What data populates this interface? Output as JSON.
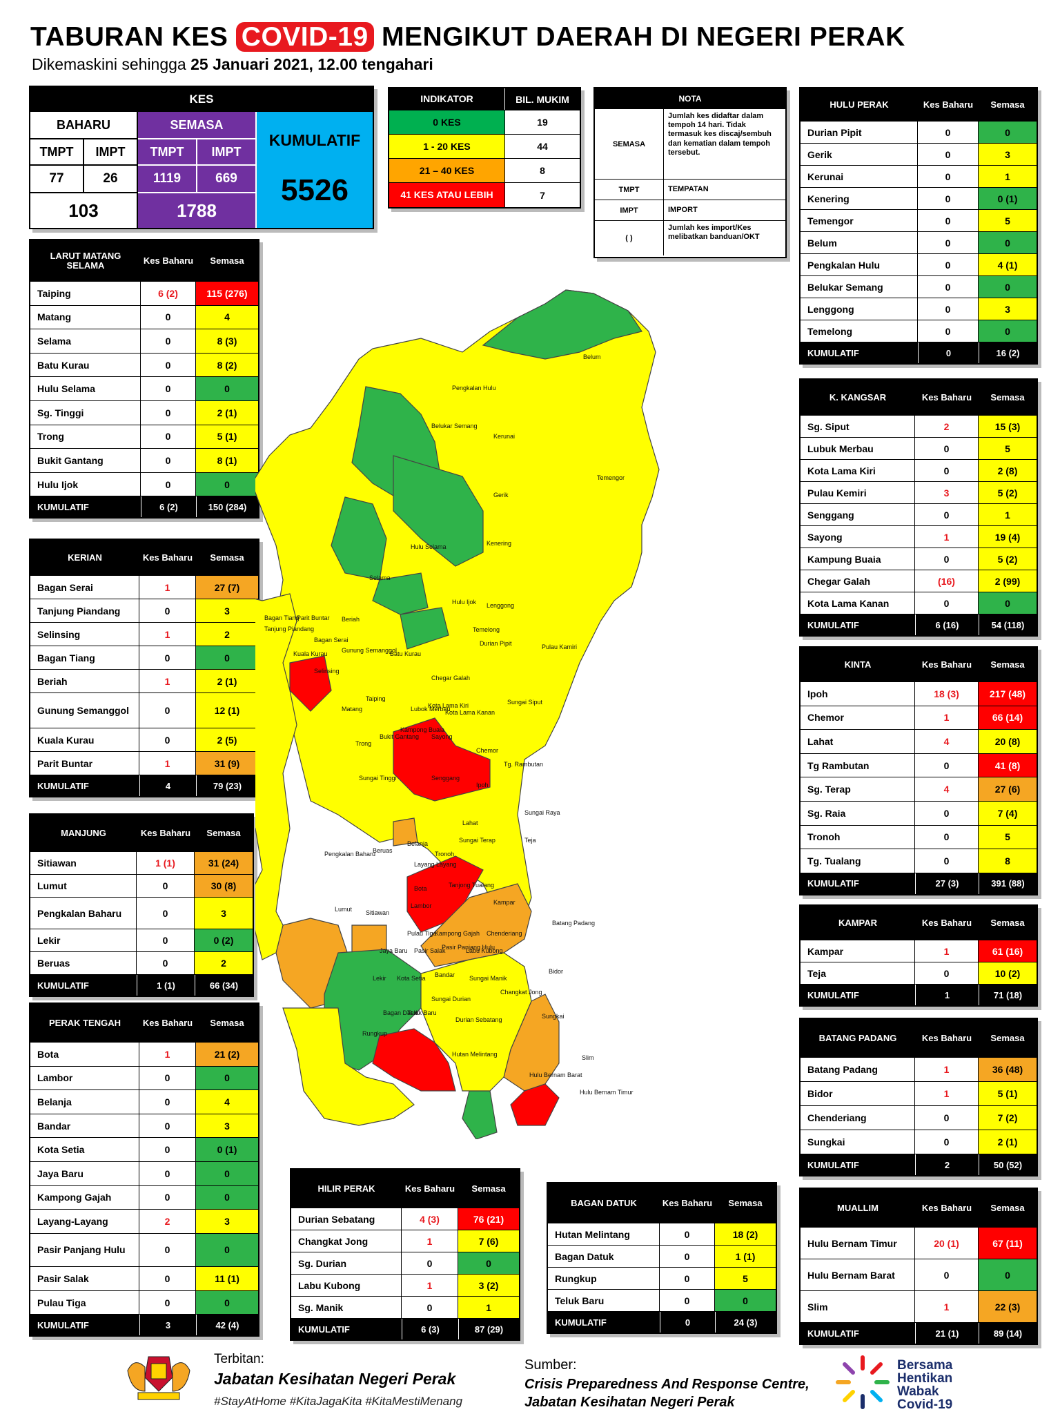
{
  "header": {
    "title_pre": "TABURAN KES",
    "title_hl": "COVID-19",
    "title_post": "MENGIKUT DAERAH DI NEGERI PERAK",
    "subtitle_pre": "Dikemaskini sehingga",
    "subtitle_date": "25 Januari 2021, 12.00 tengahari"
  },
  "kes": {
    "title": "KES",
    "baharu": "BAHARU",
    "semasa": "SEMASA",
    "kumulatif": "KUMULATIF",
    "tmpt": "TMPT",
    "impt": "IMPT",
    "baharu_tmpt": "77",
    "baharu_impt": "26",
    "semasa_tmpt": "1119",
    "semasa_impt": "669",
    "baharu_total": "103",
    "semasa_total": "1788",
    "kumulatif_total": "5526",
    "colors": {
      "semasa": "#7030a0",
      "kumulatif": "#00b0f0"
    }
  },
  "indikator": {
    "h1": "INDIKATOR",
    "h2": "BIL. MUKIM",
    "rows": [
      {
        "label": "0 KES",
        "count": "19",
        "color": "#00b050"
      },
      {
        "label": "1 - 20 KES",
        "count": "44",
        "color": "#ffff00"
      },
      {
        "label": "21 – 40 KES",
        "count": "8",
        "color": "#ffa500"
      },
      {
        "label": "41 KES ATAU LEBIH",
        "count": "7",
        "color": "#ff0000"
      }
    ]
  },
  "nota": {
    "title": "NOTA",
    "rows": [
      {
        "k": "SEMASA",
        "v": "Jumlah kes didaftar dalam tempoh 14 hari. Tidak termasuk kes discaj/sembuh dan kematian dalam tempoh tersebut."
      },
      {
        "k": "TMPT",
        "v": "TEMPATAN"
      },
      {
        "k": "IMPT",
        "v": "IMPORT"
      },
      {
        "k": "(     )",
        "v": "Jumlah kes import/Kes melibatkan banduan/OKT"
      }
    ]
  },
  "col_kes_baharu": "Kes Baharu",
  "col_semasa": "Semasa",
  "kumulatif_label": "KUMULATIF",
  "districts": [
    {
      "id": "larut",
      "name": "LARUT MATANG SELAMA",
      "rows": [
        {
          "n": "Taiping",
          "b": "6 (2)",
          "s": "115 (276)",
          "c": "r",
          "br": true
        },
        {
          "n": "Matang",
          "b": "0",
          "s": "4",
          "c": "y"
        },
        {
          "n": "Selama",
          "b": "0",
          "s": "8 (3)",
          "c": "y"
        },
        {
          "n": "Batu Kurau",
          "b": "0",
          "s": "8 (2)",
          "c": "y"
        },
        {
          "n": "Hulu Selama",
          "b": "0",
          "s": "0",
          "c": "g"
        },
        {
          "n": "Sg. Tinggi",
          "b": "0",
          "s": "2 (1)",
          "c": "y"
        },
        {
          "n": "Trong",
          "b": "0",
          "s": "5 (1)",
          "c": "y"
        },
        {
          "n": "Bukit Gantang",
          "b": "0",
          "s": "8 (1)",
          "c": "y"
        },
        {
          "n": "Hulu Ijok",
          "b": "0",
          "s": "0",
          "c": "g"
        }
      ],
      "kb": "6 (2)",
      "ks": "150 (284)"
    },
    {
      "id": "kerian",
      "name": "KERIAN",
      "rows": [
        {
          "n": "Bagan Serai",
          "b": "1",
          "s": "27 (7)",
          "c": "o",
          "br": true
        },
        {
          "n": "Tanjung Piandang",
          "b": "0",
          "s": "3",
          "c": "y"
        },
        {
          "n": "Selinsing",
          "b": "1",
          "s": "2",
          "c": "y",
          "br": true
        },
        {
          "n": "Bagan Tiang",
          "b": "0",
          "s": "0",
          "c": "g"
        },
        {
          "n": "Beriah",
          "b": "1",
          "s": "2 (1)",
          "c": "y",
          "br": true
        },
        {
          "n": "Gunung Semanggol",
          "b": "0",
          "s": "12 (1)",
          "c": "y"
        },
        {
          "n": "Kuala Kurau",
          "b": "0",
          "s": "2 (5)",
          "c": "y"
        },
        {
          "n": "Parit Buntar",
          "b": "1",
          "s": "31 (9)",
          "c": "o",
          "br": true
        }
      ],
      "kb": "4",
      "ks": "79 (23)"
    },
    {
      "id": "manjung",
      "name": "MANJUNG",
      "rows": [
        {
          "n": "Sitiawan",
          "b": "1 (1)",
          "s": "31 (24)",
          "c": "o",
          "br": true
        },
        {
          "n": "Lumut",
          "b": "0",
          "s": "30 (8)",
          "c": "o"
        },
        {
          "n": "Pengkalan Baharu",
          "b": "0",
          "s": "3",
          "c": "y"
        },
        {
          "n": "Lekir",
          "b": "0",
          "s": "0 (2)",
          "c": "g"
        },
        {
          "n": "Beruas",
          "b": "0",
          "s": "2",
          "c": "y"
        }
      ],
      "kb": "1 (1)",
      "ks": "66 (34)"
    },
    {
      "id": "perak_tengah",
      "name": "PERAK TENGAH",
      "rows": [
        {
          "n": "Bota",
          "b": "1",
          "s": "21 (2)",
          "c": "o",
          "br": true
        },
        {
          "n": "Lambor",
          "b": "0",
          "s": "0",
          "c": "g"
        },
        {
          "n": "Belanja",
          "b": "0",
          "s": "4",
          "c": "y"
        },
        {
          "n": "Bandar",
          "b": "0",
          "s": "3",
          "c": "y"
        },
        {
          "n": "Kota Setia",
          "b": "0",
          "s": "0 (1)",
          "c": "g"
        },
        {
          "n": "Jaya Baru",
          "b": "0",
          "s": "0",
          "c": "g"
        },
        {
          "n": "Kampong Gajah",
          "b": "0",
          "s": "0",
          "c": "g"
        },
        {
          "n": "Layang-Layang",
          "b": "2",
          "s": "3",
          "c": "y",
          "br": true
        },
        {
          "n": "Pasir Panjang Hulu",
          "b": "0",
          "s": "0",
          "c": "g"
        },
        {
          "n": "Pasir Salak",
          "b": "0",
          "s": "11 (1)",
          "c": "y"
        },
        {
          "n": "Pulau Tiga",
          "b": "0",
          "s": "0",
          "c": "g"
        }
      ],
      "kb": "3",
      "ks": "42 (4)"
    },
    {
      "id": "hilir_perak",
      "name": "HILIR PERAK",
      "rows": [
        {
          "n": "Durian Sebatang",
          "b": "4 (3)",
          "s": "76 (21)",
          "c": "r",
          "br": true
        },
        {
          "n": "Changkat Jong",
          "b": "1",
          "s": "7 (6)",
          "c": "y",
          "br": true
        },
        {
          "n": "Sg. Durian",
          "b": "0",
          "s": "0",
          "c": "g"
        },
        {
          "n": "Labu Kubong",
          "b": "1",
          "s": "3 (2)",
          "c": "y",
          "br": true
        },
        {
          "n": "Sg. Manik",
          "b": "0",
          "s": "1",
          "c": "y"
        }
      ],
      "kb": "6 (3)",
      "ks": "87 (29)"
    },
    {
      "id": "bagan_datuk",
      "name": "BAGAN DATUK",
      "rows": [
        {
          "n": "Hutan Melintang",
          "b": "0",
          "s": "18 (2)",
          "c": "y"
        },
        {
          "n": "Bagan Datuk",
          "b": "0",
          "s": "1 (1)",
          "c": "y"
        },
        {
          "n": "Rungkup",
          "b": "0",
          "s": "5",
          "c": "y"
        },
        {
          "n": "Teluk Baru",
          "b": "0",
          "s": "0",
          "c": "g"
        }
      ],
      "kb": "0",
      "ks": "24 (3)"
    },
    {
      "id": "hulu_perak",
      "name": "HULU PERAK",
      "rows": [
        {
          "n": "Durian Pipit",
          "b": "0",
          "s": "0",
          "c": "g"
        },
        {
          "n": "Gerik",
          "b": "0",
          "s": "3",
          "c": "y"
        },
        {
          "n": "Kerunai",
          "b": "0",
          "s": "1",
          "c": "y"
        },
        {
          "n": "Kenering",
          "b": "0",
          "s": "0 (1)",
          "c": "g"
        },
        {
          "n": "Temengor",
          "b": "0",
          "s": "5",
          "c": "y"
        },
        {
          "n": "Belum",
          "b": "0",
          "s": "0",
          "c": "g"
        },
        {
          "n": "Pengkalan Hulu",
          "b": "0",
          "s": "4 (1)",
          "c": "y"
        },
        {
          "n": "Belukar Semang",
          "b": "0",
          "s": "0",
          "c": "g"
        },
        {
          "n": "Lenggong",
          "b": "0",
          "s": "3",
          "c": "y"
        },
        {
          "n": "Temelong",
          "b": "0",
          "s": "0",
          "c": "g"
        }
      ],
      "kb": "0",
      "ks": "16 (2)"
    },
    {
      "id": "kangsar",
      "name": "K. KANGSAR",
      "rows": [
        {
          "n": "Sg. Siput",
          "b": "2",
          "s": "15 (3)",
          "c": "y",
          "br": true
        },
        {
          "n": "Lubuk Merbau",
          "b": "0",
          "s": "5",
          "c": "y"
        },
        {
          "n": "Kota Lama Kiri",
          "b": "0",
          "s": "2 (8)",
          "c": "y"
        },
        {
          "n": "Pulau Kemiri",
          "b": "3",
          "s": "5 (2)",
          "c": "y",
          "br": true
        },
        {
          "n": "Senggang",
          "b": "0",
          "s": "1",
          "c": "y"
        },
        {
          "n": "Sayong",
          "b": "1",
          "s": "19 (4)",
          "c": "y",
          "br": true
        },
        {
          "n": "Kampung Buaia",
          "b": "0",
          "s": "5 (2)",
          "c": "y"
        },
        {
          "n": "Chegar Galah",
          "b": "(16)",
          "s": "2 (99)",
          "c": "y",
          "br": true
        },
        {
          "n": "Kota Lama Kanan",
          "b": "0",
          "s": "0",
          "c": "g"
        }
      ],
      "kb": "6 (16)",
      "ks": "54 (118)"
    },
    {
      "id": "kinta",
      "name": "KINTA",
      "rows": [
        {
          "n": "Ipoh",
          "b": "18 (3)",
          "s": "217 (48)",
          "c": "r",
          "br": true
        },
        {
          "n": "Chemor",
          "b": "1",
          "s": "66 (14)",
          "c": "r",
          "br": true
        },
        {
          "n": "Lahat",
          "b": "4",
          "s": "20 (8)",
          "c": "y",
          "br": true
        },
        {
          "n": "Tg Rambutan",
          "b": "0",
          "s": "41 (8)",
          "c": "r"
        },
        {
          "n": "Sg. Terap",
          "b": "4",
          "s": "27 (6)",
          "c": "o",
          "br": true
        },
        {
          "n": "Sg. Raia",
          "b": "0",
          "s": "7 (4)",
          "c": "y"
        },
        {
          "n": "Tronoh",
          "b": "0",
          "s": "5",
          "c": "y"
        },
        {
          "n": "Tg. Tualang",
          "b": "0",
          "s": "8",
          "c": "y"
        }
      ],
      "kb": "27 (3)",
      "ks": "391 (88)"
    },
    {
      "id": "kampar",
      "name": "KAMPAR",
      "rows": [
        {
          "n": "Kampar",
          "b": "1",
          "s": "61 (16)",
          "c": "r",
          "br": true
        },
        {
          "n": "Teja",
          "b": "0",
          "s": "10 (2)",
          "c": "y"
        }
      ],
      "kb": "1",
      "ks": "71 (18)"
    },
    {
      "id": "batang_padang",
      "name": "BATANG PADANG",
      "rows": [
        {
          "n": "Batang Padang",
          "b": "1",
          "s": "36 (48)",
          "c": "o",
          "br": true
        },
        {
          "n": "Bidor",
          "b": "1",
          "s": "5 (1)",
          "c": "y",
          "br": true
        },
        {
          "n": "Chenderiang",
          "b": "0",
          "s": "7 (2)",
          "c": "y"
        },
        {
          "n": "Sungkai",
          "b": "0",
          "s": "2 (1)",
          "c": "y"
        }
      ],
      "kb": "2",
      "ks": "50 (52)"
    },
    {
      "id": "muallim",
      "name": "MUALLIM",
      "rows": [
        {
          "n": "Hulu Bernam Timur",
          "b": "20 (1)",
          "s": "67 (11)",
          "c": "r",
          "br": true
        },
        {
          "n": "Hulu Bernam Barat",
          "b": "0",
          "s": "0",
          "c": "g"
        },
        {
          "n": "Slim",
          "b": "1",
          "s": "22 (3)",
          "c": "o",
          "br": true
        }
      ],
      "kb": "21 (1)",
      "ks": "89 (14)"
    }
  ],
  "map_labels": [
    "Belum",
    "Pengkalan Hulu",
    "Belukar Semang",
    "Kerunai",
    "Gerik",
    "Temengor",
    "Hulu Selama",
    "Kenering",
    "Selama",
    "Hulu Ijok",
    "Lenggong",
    "Temelong",
    "Durian Pipit",
    "Pulau Kamiri",
    "Bagan Tiang",
    "Parit Buntar",
    "Tanjung Piandang",
    "Kuala Kurau",
    "Bagan Serai",
    "Beriah",
    "Gunung Semanggol",
    "Batu Kurau",
    "Selinsing",
    "Taiping",
    "Chegar Galah",
    "Matang",
    "Lubok Merbau",
    "Kota Lama Kiri",
    "Kota Lama Kanan",
    "Sungai Siput",
    "Kampong Buaia",
    "Bukit Gantang",
    "Trong",
    "Sayong",
    "Senggang",
    "Chemor",
    "Tg. Rambutan",
    "Ipoh",
    "Sungai Tinggi",
    "Lahat",
    "Sungai Raya",
    "Sungai Terap",
    "Teja",
    "Pengkalan Baharu",
    "Beruas",
    "Belanja",
    "Layang Layang",
    "Tronoh",
    "Kampar",
    "Bota",
    "Tanjong Tualang",
    "Lumut",
    "Sitiawan",
    "Lambor",
    "Pulau Tiga",
    "Kampong Gajah",
    "Chenderiang",
    "Batang Padang",
    "Pasir Panjang Hulu",
    "Jaya Baru",
    "Pasir Salak",
    "Labu Kubong",
    "Bidor",
    "Lekir",
    "Kota Setia",
    "Bandar",
    "Sungai Manik",
    "Changkat Jong",
    "Bagan Datuk",
    "Teluk Baru",
    "Sungai Durian",
    "Durian Sebatang",
    "Sungkai",
    "Slim",
    "Rungkup",
    "Hutan Melintang",
    "Hulu Bernam Barat",
    "Hulu Bernam Timur"
  ],
  "footer": {
    "terbitan": "Terbitan:",
    "jabatan": "Jabatan Kesihatan Negeri Perak",
    "tags": "#StayAtHome #KitaJagaKita #KitaMestiMenang",
    "sumber": "Sumber:",
    "src1": "Crisis Preparedness And Response Centre,",
    "src2": "Jabatan Kesihatan Negeri Perak",
    "bersama": [
      "Bersama",
      "Hentikan",
      "Wabak",
      "Covid-19"
    ]
  }
}
